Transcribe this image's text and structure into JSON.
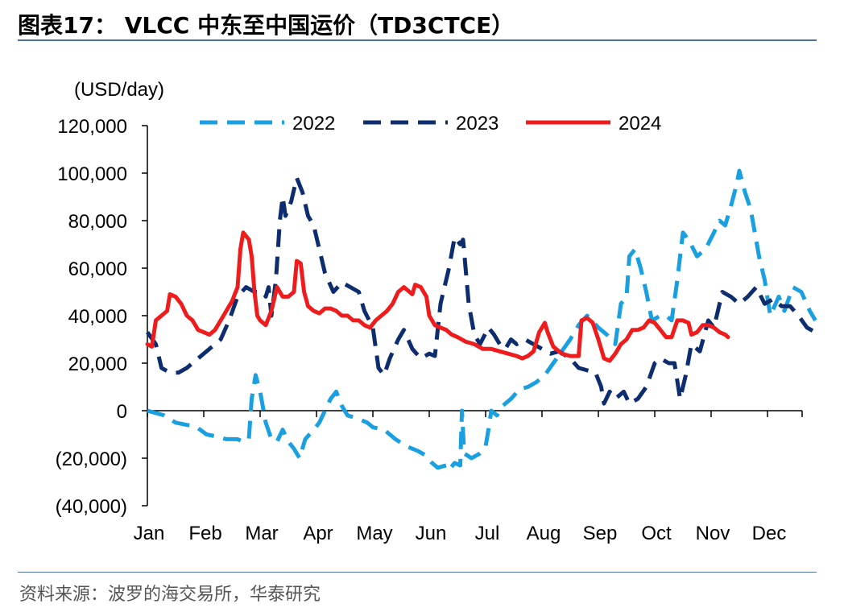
{
  "figure": {
    "title": "图表17：  VLCC 中东至中国运价（TD3CTCE）",
    "source": "资料来源：波罗的海交易所，华泰研究"
  },
  "chart_data": {
    "type": "line",
    "ylabel": "(USD/day)",
    "ylim": [
      -40000,
      120000
    ],
    "yticks": [
      120000,
      100000,
      80000,
      60000,
      40000,
      20000,
      0,
      -20000,
      -40000
    ],
    "ytick_labels": [
      "120,000",
      "100,000",
      "80,000",
      "60,000",
      "40,000",
      "20,000",
      "0",
      "(20,000)",
      "(40,000)"
    ],
    "xlim": [
      0,
      12
    ],
    "x_tick_labels": [
      "Jan",
      "Feb",
      "Mar",
      "Apr",
      "May",
      "Jun",
      "Jul",
      "Aug",
      "Sep",
      "Oct",
      "Nov",
      "Dec"
    ],
    "x_unit_note": "month index, Jan=0",
    "legend_position": "top",
    "grid": false,
    "series": [
      {
        "name": "2022",
        "color": "#1aa0e0",
        "style": "dashed",
        "points": [
          [
            0,
            0
          ],
          [
            0.15,
            -1000
          ],
          [
            0.3,
            -2000
          ],
          [
            0.5,
            -5000
          ],
          [
            0.7,
            -6000
          ],
          [
            0.85,
            -6500
          ],
          [
            1.05,
            -10000
          ],
          [
            1.25,
            -11000
          ],
          [
            1.4,
            -12000
          ],
          [
            1.6,
            -12000
          ],
          [
            1.7,
            -13000
          ],
          [
            1.8,
            -12000
          ],
          [
            1.85,
            5000
          ],
          [
            1.92,
            15000
          ],
          [
            2.0,
            8000
          ],
          [
            2.1,
            -5000
          ],
          [
            2.2,
            -12000
          ],
          [
            2.3,
            -13000
          ],
          [
            2.4,
            -8000
          ],
          [
            2.5,
            -13000
          ],
          [
            2.6,
            -16000
          ],
          [
            2.7,
            -20000
          ],
          [
            2.8,
            -12000
          ],
          [
            2.95,
            -8000
          ],
          [
            3.05,
            -5000
          ],
          [
            3.15,
            0
          ],
          [
            3.25,
            5000
          ],
          [
            3.35,
            8000
          ],
          [
            3.45,
            2000
          ],
          [
            3.55,
            -2000
          ],
          [
            3.7,
            -3000
          ],
          [
            3.9,
            -5000
          ],
          [
            4.0,
            -7000
          ],
          [
            4.2,
            -8000
          ],
          [
            4.4,
            -12000
          ],
          [
            4.6,
            -15000
          ],
          [
            4.8,
            -17000
          ],
          [
            4.95,
            -19000
          ],
          [
            5.05,
            -22000
          ],
          [
            5.15,
            -24000
          ],
          [
            5.3,
            -23000
          ],
          [
            5.35,
            -25000
          ],
          [
            5.45,
            -22000
          ],
          [
            5.55,
            -23000
          ],
          [
            5.58,
            0
          ],
          [
            5.62,
            -18000
          ],
          [
            5.75,
            -20000
          ],
          [
            5.9,
            -18000
          ],
          [
            6.0,
            -15000
          ],
          [
            6.05,
            -8000
          ],
          [
            6.1,
            0
          ],
          [
            6.2,
            -2000
          ],
          [
            6.3,
            2000
          ],
          [
            6.45,
            5000
          ],
          [
            6.6,
            9000
          ],
          [
            6.75,
            10000
          ],
          [
            6.9,
            12000
          ],
          [
            7.05,
            15000
          ],
          [
            7.2,
            20000
          ],
          [
            7.35,
            25000
          ],
          [
            7.5,
            30000
          ],
          [
            7.65,
            36000
          ],
          [
            7.8,
            40000
          ],
          [
            8.0,
            35000
          ],
          [
            8.15,
            32000
          ],
          [
            8.3,
            28000
          ],
          [
            8.4,
            45000
          ],
          [
            8.5,
            48000
          ],
          [
            8.55,
            65000
          ],
          [
            8.65,
            68000
          ],
          [
            8.75,
            60000
          ],
          [
            8.85,
            50000
          ],
          [
            8.95,
            38000
          ],
          [
            9.1,
            40000
          ],
          [
            9.2,
            40000
          ],
          [
            9.3,
            38000
          ],
          [
            9.4,
            55000
          ],
          [
            9.5,
            75000
          ],
          [
            9.6,
            72000
          ],
          [
            9.75,
            65000
          ],
          [
            9.9,
            68000
          ],
          [
            10.05,
            75000
          ],
          [
            10.15,
            80000
          ],
          [
            10.25,
            78000
          ],
          [
            10.35,
            86000
          ],
          [
            10.45,
            95000
          ],
          [
            10.5,
            101000
          ],
          [
            10.6,
            92000
          ],
          [
            10.7,
            85000
          ],
          [
            10.85,
            65000
          ],
          [
            10.95,
            55000
          ],
          [
            11.05,
            40000
          ],
          [
            11.2,
            48000
          ],
          [
            11.3,
            42000
          ],
          [
            11.45,
            52000
          ],
          [
            11.6,
            50000
          ],
          [
            11.75,
            42000
          ],
          [
            11.85,
            38000
          ]
        ]
      },
      {
        "name": "2023",
        "color": "#0d2d6e",
        "style": "dashed",
        "points": [
          [
            0,
            33000
          ],
          [
            0.15,
            28000
          ],
          [
            0.25,
            18000
          ],
          [
            0.4,
            16000
          ],
          [
            0.55,
            16000
          ],
          [
            0.7,
            18000
          ],
          [
            0.9,
            22000
          ],
          [
            1.1,
            26000
          ],
          [
            1.3,
            30000
          ],
          [
            1.45,
            38000
          ],
          [
            1.6,
            48000
          ],
          [
            1.75,
            52000
          ],
          [
            1.9,
            50000
          ],
          [
            2.05,
            50000
          ],
          [
            2.1,
            48000
          ],
          [
            2.15,
            52000
          ],
          [
            2.2,
            40000
          ],
          [
            2.28,
            55000
          ],
          [
            2.35,
            80000
          ],
          [
            2.4,
            90000
          ],
          [
            2.45,
            82000
          ],
          [
            2.55,
            88000
          ],
          [
            2.65,
            98000
          ],
          [
            2.75,
            92000
          ],
          [
            2.85,
            82000
          ],
          [
            2.95,
            78000
          ],
          [
            3.05,
            68000
          ],
          [
            3.15,
            58000
          ],
          [
            3.3,
            50000
          ],
          [
            3.45,
            54000
          ],
          [
            3.6,
            52000
          ],
          [
            3.75,
            50000
          ],
          [
            3.85,
            42000
          ],
          [
            4.0,
            35000
          ],
          [
            4.1,
            18000
          ],
          [
            4.2,
            15000
          ],
          [
            4.3,
            22000
          ],
          [
            4.45,
            30000
          ],
          [
            4.55,
            34000
          ],
          [
            4.7,
            26000
          ],
          [
            4.85,
            22000
          ],
          [
            5.0,
            24000
          ],
          [
            5.1,
            23000
          ],
          [
            5.2,
            45000
          ],
          [
            5.35,
            60000
          ],
          [
            5.45,
            73000
          ],
          [
            5.55,
            70000
          ],
          [
            5.6,
            72000
          ],
          [
            5.7,
            45000
          ],
          [
            5.8,
            32000
          ],
          [
            5.9,
            28000
          ],
          [
            6.05,
            35000
          ],
          [
            6.15,
            32000
          ],
          [
            6.25,
            28000
          ],
          [
            6.35,
            26000
          ],
          [
            6.45,
            30000
          ],
          [
            6.55,
            28000
          ],
          [
            6.7,
            30000
          ],
          [
            6.85,
            28000
          ],
          [
            7.0,
            26000
          ],
          [
            7.15,
            24000
          ],
          [
            7.3,
            25000
          ],
          [
            7.5,
            22000
          ],
          [
            7.65,
            18000
          ],
          [
            7.8,
            17000
          ],
          [
            7.95,
            16000
          ],
          [
            8.05,
            10000
          ],
          [
            8.1,
            3000
          ],
          [
            8.2,
            8000
          ],
          [
            8.3,
            5000
          ],
          [
            8.45,
            8000
          ],
          [
            8.55,
            3000
          ],
          [
            8.7,
            5000
          ],
          [
            8.85,
            10000
          ],
          [
            9.0,
            20000
          ],
          [
            9.1,
            22000
          ],
          [
            9.25,
            20000
          ],
          [
            9.35,
            20000
          ],
          [
            9.45,
            5000
          ],
          [
            9.55,
            15000
          ],
          [
            9.65,
            28000
          ],
          [
            9.8,
            25000
          ],
          [
            9.95,
            38000
          ],
          [
            10.05,
            35000
          ],
          [
            10.2,
            50000
          ],
          [
            10.35,
            48000
          ],
          [
            10.5,
            45000
          ],
          [
            10.65,
            48000
          ],
          [
            10.8,
            52000
          ],
          [
            10.95,
            45000
          ],
          [
            11.1,
            47000
          ],
          [
            11.25,
            44000
          ],
          [
            11.4,
            44000
          ],
          [
            11.55,
            40000
          ],
          [
            11.7,
            35000
          ],
          [
            11.85,
            33000
          ]
        ]
      },
      {
        "name": "2024",
        "color": "#ee1c1c",
        "style": "solid",
        "points": [
          [
            0,
            28000
          ],
          [
            0.08,
            27000
          ],
          [
            0.15,
            38000
          ],
          [
            0.25,
            40000
          ],
          [
            0.35,
            42000
          ],
          [
            0.4,
            49000
          ],
          [
            0.5,
            48000
          ],
          [
            0.6,
            45000
          ],
          [
            0.7,
            40000
          ],
          [
            0.8,
            38000
          ],
          [
            0.9,
            34000
          ],
          [
            1.0,
            33000
          ],
          [
            1.1,
            32000
          ],
          [
            1.2,
            34000
          ],
          [
            1.3,
            38000
          ],
          [
            1.4,
            42000
          ],
          [
            1.5,
            46000
          ],
          [
            1.6,
            52000
          ],
          [
            1.65,
            68000
          ],
          [
            1.7,
            75000
          ],
          [
            1.8,
            72000
          ],
          [
            1.85,
            65000
          ],
          [
            1.9,
            50000
          ],
          [
            1.95,
            40000
          ],
          [
            2.0,
            38000
          ],
          [
            2.1,
            36000
          ],
          [
            2.2,
            42000
          ],
          [
            2.3,
            52000
          ],
          [
            2.4,
            48000
          ],
          [
            2.5,
            48000
          ],
          [
            2.6,
            50000
          ],
          [
            2.65,
            63000
          ],
          [
            2.72,
            62000
          ],
          [
            2.78,
            50000
          ],
          [
            2.85,
            44000
          ],
          [
            2.95,
            42000
          ],
          [
            3.05,
            41000
          ],
          [
            3.15,
            43000
          ],
          [
            3.25,
            43000
          ],
          [
            3.35,
            42000
          ],
          [
            3.45,
            40000
          ],
          [
            3.55,
            40000
          ],
          [
            3.65,
            38000
          ],
          [
            3.75,
            38000
          ],
          [
            3.85,
            36000
          ],
          [
            3.95,
            35000
          ],
          [
            4.05,
            38000
          ],
          [
            4.15,
            40000
          ],
          [
            4.25,
            42000
          ],
          [
            4.35,
            45000
          ],
          [
            4.45,
            50000
          ],
          [
            4.55,
            52000
          ],
          [
            4.65,
            50000
          ],
          [
            4.7,
            49000
          ],
          [
            4.75,
            53000
          ],
          [
            4.85,
            52000
          ],
          [
            4.95,
            48000
          ],
          [
            5.0,
            40000
          ],
          [
            5.1,
            36000
          ],
          [
            5.2,
            35000
          ],
          [
            5.3,
            34000
          ],
          [
            5.4,
            32000
          ],
          [
            5.5,
            31000
          ],
          [
            5.65,
            29000
          ],
          [
            5.8,
            28000
          ],
          [
            5.95,
            26000
          ],
          [
            6.1,
            26000
          ],
          [
            6.25,
            25000
          ],
          [
            6.4,
            24000
          ],
          [
            6.55,
            23000
          ],
          [
            6.65,
            22000
          ],
          [
            6.75,
            23000
          ],
          [
            6.85,
            25000
          ],
          [
            6.95,
            33000
          ],
          [
            7.05,
            37000
          ],
          [
            7.1,
            33000
          ],
          [
            7.2,
            27000
          ],
          [
            7.35,
            24000
          ],
          [
            7.5,
            23000
          ],
          [
            7.65,
            23000
          ],
          [
            7.7,
            38000
          ],
          [
            7.8,
            39000
          ],
          [
            7.9,
            37000
          ],
          [
            8.0,
            30000
          ],
          [
            8.1,
            22000
          ],
          [
            8.2,
            21000
          ],
          [
            8.3,
            24000
          ],
          [
            8.4,
            28000
          ],
          [
            8.5,
            30000
          ],
          [
            8.6,
            34000
          ],
          [
            8.7,
            34000
          ],
          [
            8.8,
            35000
          ],
          [
            8.9,
            38000
          ],
          [
            9.0,
            37000
          ],
          [
            9.1,
            34000
          ],
          [
            9.2,
            31000
          ],
          [
            9.3,
            31000
          ],
          [
            9.4,
            38000
          ],
          [
            9.5,
            38000
          ],
          [
            9.6,
            37000
          ],
          [
            9.65,
            32000
          ],
          [
            9.75,
            33000
          ],
          [
            9.85,
            36000
          ],
          [
            9.95,
            36000
          ],
          [
            10.05,
            35000
          ],
          [
            10.15,
            33000
          ],
          [
            10.25,
            32000
          ],
          [
            10.3,
            31000
          ]
        ]
      }
    ]
  }
}
